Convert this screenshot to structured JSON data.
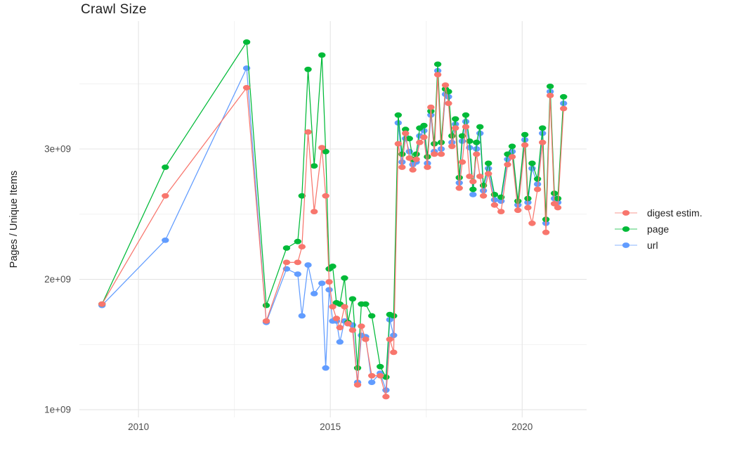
{
  "title": "Crawl Size",
  "y_axis_title": "Pages / Unique Items",
  "legend": {
    "position": "right",
    "items": [
      {
        "label": "digest estim.",
        "color": "#F8766D"
      },
      {
        "label": "page",
        "color": "#00BA38"
      },
      {
        "label": "url",
        "color": "#619CFF"
      }
    ]
  },
  "plot_style": {
    "background": "#ffffff",
    "gridline_major_color": "#e4e4e4",
    "gridline_minor_color": "#f0f0f0",
    "tick_label_color": "#4d4d4d",
    "title_color": "#1f1f1f"
  },
  "chart_data": {
    "type": "line",
    "title": "Crawl Size",
    "xlabel": "",
    "ylabel": "Pages / Unique Items",
    "grid": true,
    "legend_position": "right",
    "y_values_unit": "1e9 (values below are in billions, axis shows e-notation)",
    "xlim": [
      2008.46,
      2021.68
    ],
    "ylim": [
      0.941,
      3.981
    ],
    "x_ticks_major": [
      2010,
      2015,
      2020
    ],
    "x_tick_labels": [
      "2010",
      "2015",
      "2020"
    ],
    "x_ticks_minor": [
      2012.5,
      2017.5
    ],
    "y_ticks_major": [
      1,
      2,
      3
    ],
    "y_tick_labels": [
      "1e+09",
      "2e+09",
      "3e+09"
    ],
    "y_ticks_minor": [
      1.5,
      2.5,
      3.5
    ],
    "x": [
      2009.05,
      2010.7,
      2012.82,
      2013.33,
      2013.86,
      2014.15,
      2014.26,
      2014.42,
      2014.58,
      2014.78,
      2014.88,
      2014.97,
      2015.06,
      2015.16,
      2015.25,
      2015.37,
      2015.46,
      2015.58,
      2015.71,
      2015.81,
      2015.92,
      2016.08,
      2016.3,
      2016.45,
      2016.55,
      2016.65,
      2016.77,
      2016.87,
      2016.96,
      2017.06,
      2017.15,
      2017.24,
      2017.33,
      2017.44,
      2017.53,
      2017.62,
      2017.71,
      2017.8,
      2017.89,
      2018.0,
      2018.08,
      2018.17,
      2018.26,
      2018.36,
      2018.44,
      2018.53,
      2018.63,
      2018.72,
      2018.81,
      2018.9,
      2018.99,
      2019.12,
      2019.28,
      2019.45,
      2019.62,
      2019.74,
      2019.89,
      2020.07,
      2020.15,
      2020.26,
      2020.4,
      2020.53,
      2020.62,
      2020.73,
      2020.84,
      2020.93,
      2021.08
    ],
    "series": [
      {
        "name": "digest estim.",
        "color": "#F8766D",
        "values": [
          1.81,
          2.64,
          3.47,
          1.68,
          2.13,
          2.13,
          2.25,
          3.13,
          2.52,
          3.01,
          2.64,
          1.98,
          1.79,
          1.7,
          1.63,
          1.79,
          1.66,
          1.61,
          1.19,
          1.64,
          1.54,
          1.26,
          1.26,
          1.1,
          1.54,
          1.44,
          3.04,
          2.86,
          3.12,
          2.93,
          2.84,
          2.92,
          3.05,
          3.09,
          2.86,
          3.32,
          2.96,
          3.57,
          2.96,
          3.49,
          3.35,
          3.02,
          3.16,
          2.7,
          2.9,
          3.17,
          2.79,
          2.75,
          2.96,
          2.79,
          2.64,
          2.81,
          2.57,
          2.52,
          2.88,
          2.94,
          2.53,
          3.03,
          2.55,
          2.43,
          2.69,
          3.05,
          2.36,
          3.41,
          2.58,
          2.55,
          3.31
        ]
      },
      {
        "name": "page",
        "color": "#00BA38",
        "values": [
          1.81,
          2.86,
          3.82,
          1.8,
          2.24,
          2.29,
          2.64,
          3.61,
          2.87,
          3.72,
          2.98,
          2.08,
          2.1,
          1.82,
          1.81,
          2.01,
          1.67,
          1.85,
          1.32,
          1.81,
          1.81,
          1.72,
          1.33,
          1.25,
          1.73,
          1.72,
          3.26,
          2.96,
          3.15,
          3.08,
          2.92,
          2.96,
          3.16,
          3.18,
          2.94,
          3.29,
          3.04,
          3.65,
          3.05,
          3.46,
          3.44,
          3.1,
          3.23,
          2.78,
          3.1,
          3.26,
          3.06,
          2.69,
          3.05,
          3.17,
          2.72,
          2.89,
          2.65,
          2.63,
          2.96,
          3.02,
          2.6,
          3.11,
          2.62,
          2.89,
          2.77,
          3.16,
          2.46,
          3.48,
          2.66,
          2.62,
          3.4
        ]
      },
      {
        "name": "url",
        "color": "#619CFF",
        "values": [
          1.8,
          2.3,
          3.62,
          1.67,
          2.08,
          2.04,
          1.72,
          2.11,
          1.89,
          1.97,
          1.32,
          1.92,
          1.68,
          1.68,
          1.52,
          1.68,
          1.66,
          1.65,
          1.21,
          1.57,
          1.56,
          1.21,
          1.28,
          1.15,
          1.69,
          1.57,
          3.2,
          2.9,
          3.08,
          2.98,
          2.88,
          2.9,
          3.1,
          3.14,
          2.89,
          3.26,
          2.98,
          3.6,
          3.0,
          3.42,
          3.4,
          3.05,
          3.19,
          2.74,
          3.06,
          3.21,
          3.01,
          2.65,
          3.0,
          3.12,
          2.68,
          2.85,
          2.61,
          2.6,
          2.92,
          2.98,
          2.57,
          3.07,
          2.59,
          2.85,
          2.73,
          3.12,
          2.43,
          3.44,
          2.62,
          2.59,
          3.35
        ]
      }
    ]
  }
}
